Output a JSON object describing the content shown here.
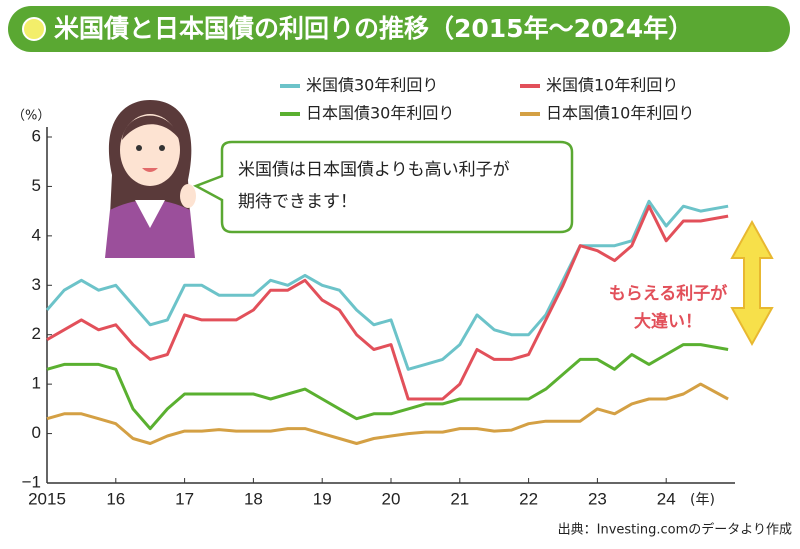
{
  "chart_data": {
    "type": "line",
    "title": "米国債と日本国債の利回りの推移（2015年～2024年）",
    "y_unit": "（%）",
    "x_unit": "(年)",
    "bubble_text": [
      "米国債は日本国債よりも高い利子が",
      "期待できます！"
    ],
    "annotation": [
      "もらえる利子が",
      "大違い！"
    ],
    "source": "出典：Investing.comのデータより作成",
    "x": [
      2015,
      2015.25,
      2015.5,
      2015.75,
      2016,
      2016.25,
      2016.5,
      2016.75,
      2017,
      2017.25,
      2017.5,
      2017.75,
      2018,
      2018.25,
      2018.5,
      2018.75,
      2019,
      2019.25,
      2019.5,
      2019.75,
      2020,
      2020.25,
      2020.5,
      2020.75,
      2021,
      2021.25,
      2021.5,
      2021.75,
      2022,
      2022.25,
      2022.5,
      2022.75,
      2023,
      2023.25,
      2023.5,
      2023.75,
      2024,
      2024.25,
      2024.5,
      2024.9
    ],
    "series": [
      {
        "name": "米国債30年利回り",
        "color": "#6cc3c9",
        "values": [
          2.5,
          2.9,
          3.1,
          2.9,
          3.0,
          2.6,
          2.2,
          2.3,
          3.0,
          3.0,
          2.8,
          2.8,
          2.8,
          3.1,
          3.0,
          3.2,
          3.0,
          2.9,
          2.5,
          2.2,
          2.3,
          1.3,
          1.4,
          1.5,
          1.8,
          2.4,
          2.1,
          2.0,
          2.0,
          2.4,
          3.1,
          3.8,
          3.8,
          3.8,
          3.9,
          4.7,
          4.2,
          4.6,
          4.5,
          4.6
        ]
      },
      {
        "name": "米国債10年利回り",
        "color": "#e2505a",
        "values": [
          1.9,
          2.1,
          2.3,
          2.1,
          2.2,
          1.8,
          1.5,
          1.6,
          2.4,
          2.3,
          2.3,
          2.3,
          2.5,
          2.9,
          2.9,
          3.1,
          2.7,
          2.5,
          2.0,
          1.7,
          1.8,
          0.7,
          0.7,
          0.7,
          1.0,
          1.7,
          1.5,
          1.5,
          1.6,
          2.3,
          3.0,
          3.8,
          3.7,
          3.5,
          3.8,
          4.6,
          3.9,
          4.3,
          4.3,
          4.4
        ]
      },
      {
        "name": "日本国債30年利回り",
        "color": "#5ab030",
        "values": [
          1.3,
          1.4,
          1.4,
          1.4,
          1.3,
          0.5,
          0.1,
          0.5,
          0.8,
          0.8,
          0.8,
          0.8,
          0.8,
          0.7,
          0.8,
          0.9,
          0.7,
          0.5,
          0.3,
          0.4,
          0.4,
          0.5,
          0.6,
          0.6,
          0.7,
          0.7,
          0.7,
          0.7,
          0.7,
          0.9,
          1.2,
          1.5,
          1.5,
          1.3,
          1.6,
          1.4,
          1.6,
          1.8,
          1.8,
          1.7
        ]
      },
      {
        "name": "日本国債10年利回り",
        "color": "#d4a044",
        "values": [
          0.3,
          0.4,
          0.4,
          0.3,
          0.2,
          -0.1,
          -0.2,
          -0.05,
          0.05,
          0.05,
          0.08,
          0.05,
          0.05,
          0.05,
          0.1,
          0.1,
          0.0,
          -0.1,
          -0.2,
          -0.1,
          -0.05,
          0.0,
          0.03,
          0.03,
          0.1,
          0.1,
          0.05,
          0.07,
          0.2,
          0.25,
          0.25,
          0.25,
          0.5,
          0.4,
          0.6,
          0.7,
          0.7,
          0.8,
          1.0,
          0.7
        ]
      }
    ],
    "xlim": [
      2015,
      2025
    ],
    "xticks": [
      2015,
      {
        "value": 2016,
        "label": "16"
      },
      {
        "value": 2017,
        "label": "17"
      },
      {
        "value": 2018,
        "label": "18"
      },
      {
        "value": 2019,
        "label": "19"
      },
      {
        "value": 2020,
        "label": "20"
      },
      {
        "value": 2021,
        "label": "21"
      },
      {
        "value": 2022,
        "label": "22"
      },
      {
        "value": 2023,
        "label": "23"
      },
      {
        "value": 2024,
        "label": "24"
      }
    ],
    "ylim": [
      -1,
      6
    ],
    "yticks": [
      {
        "value": -1,
        "label": "−1"
      },
      0,
      1,
      2,
      3,
      4,
      5,
      6
    ],
    "grid": false
  }
}
